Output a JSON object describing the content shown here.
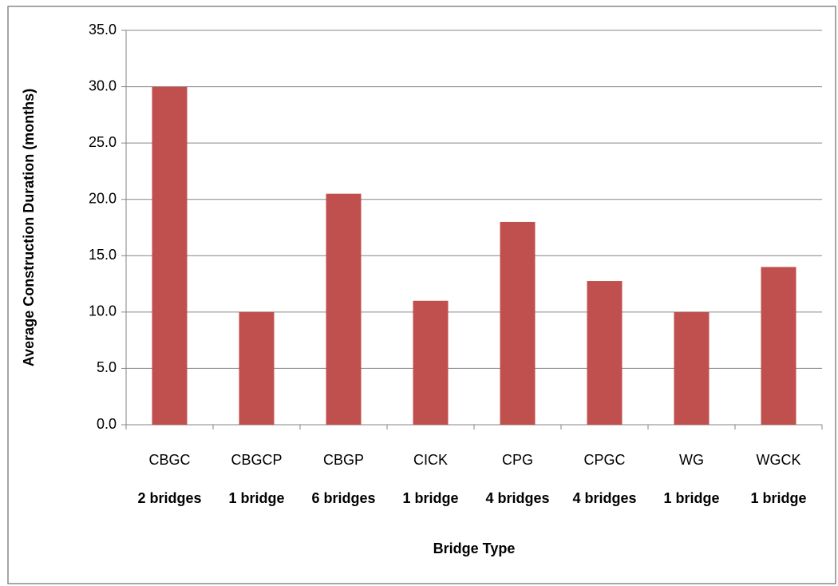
{
  "chart_data": {
    "type": "bar",
    "y_axis_label": "Average Construction Duration (months)",
    "x_axis_label": "Bridge Type",
    "categories": [
      "CBGC",
      "CBGCP",
      "CBGP",
      "CICK",
      "CPG",
      "CPGC",
      "WG",
      "WGCK"
    ],
    "sublabels": [
      "2 bridges",
      "1 bridge",
      "6 bridges",
      "1 bridge",
      "4 bridges",
      "4 bridges",
      "1 bridge",
      "1 bridge"
    ],
    "values": [
      30,
      10,
      20.5,
      11,
      18,
      12.75,
      10,
      14
    ],
    "color": "#c0504d",
    "ylim": [
      0,
      35
    ],
    "yticks": [
      {
        "value": 0,
        "label": "0.0"
      },
      {
        "value": 5,
        "label": "5.0"
      },
      {
        "value": 10,
        "label": "10.0"
      },
      {
        "value": 15,
        "label": "15.0"
      },
      {
        "value": 20,
        "label": "20.0"
      },
      {
        "value": 25,
        "label": "25.0"
      },
      {
        "value": 30,
        "label": "30.0"
      },
      {
        "value": 35,
        "label": "35.0"
      }
    ],
    "grid": true
  }
}
